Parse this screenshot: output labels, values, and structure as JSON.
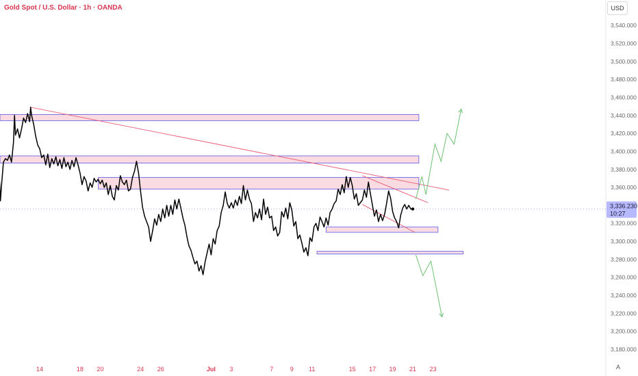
{
  "title": "Gold Spot / U.S. Dollar · 1h · OANDA",
  "currency_label": "USD",
  "auto_label": "A",
  "colors": {
    "price_line": "#000000",
    "zone_fill": "#f8cfd8",
    "zone_stroke": "#5a5ae6",
    "trend_line": "#e85a72",
    "projection_up": "#6cc072",
    "projection_down": "#6cc072",
    "axis_text_x": "#d9364f",
    "axis_text_y": "#666666",
    "price_tag_bg": "#b7b9ff"
  },
  "price_tag": {
    "price": "3,336.230",
    "countdown": "10:27"
  },
  "chart_data": {
    "type": "line",
    "title": "Gold Spot / U.S. Dollar · 1h · OANDA",
    "xlabel": "",
    "ylabel": "",
    "ylim": [
      3163,
      3565
    ],
    "x_ticks": [
      {
        "label": "14",
        "day": 0
      },
      {
        "label": "18",
        "day": 4
      },
      {
        "label": "20",
        "day": 6
      },
      {
        "label": "24",
        "day": 10
      },
      {
        "label": "26",
        "day": 12
      },
      {
        "label": "Jul",
        "day": 17
      },
      {
        "label": "3",
        "day": 19
      },
      {
        "label": "7",
        "day": 23
      },
      {
        "label": "9",
        "day": 25
      },
      {
        "label": "11",
        "day": 27
      },
      {
        "label": "15",
        "day": 31
      },
      {
        "label": "17",
        "day": 33
      },
      {
        "label": "19",
        "day": 35
      },
      {
        "label": "21",
        "day": 37
      },
      {
        "label": "23",
        "day": 39
      }
    ],
    "y_ticks": [
      3180,
      3200,
      3220,
      3240,
      3260,
      3280,
      3300,
      3320,
      3340,
      3360,
      3380,
      3400,
      3420,
      3440,
      3460,
      3480,
      3500,
      3520,
      3540
    ],
    "y_tick_labels": [
      "3,180.000",
      "3,200.000",
      "3,220.000",
      "3,240.000",
      "3,260.000",
      "3,280.000",
      "3,300.000",
      "3,320.000",
      "3,340.000",
      "3,360.000",
      "3,380.000",
      "3,400.000",
      "3,420.000",
      "3,440.000",
      "3,460.000",
      "3,480.000",
      "3,500.000",
      "3,520.000",
      "3,540.000"
    ],
    "series": [
      {
        "points": [
          [
            -4.6,
            3370
          ],
          [
            -4.4,
            3375
          ],
          [
            -4.2,
            3368
          ],
          [
            -4.0,
            3372
          ],
          [
            -3.9,
            3345
          ],
          [
            -3.8,
            3360
          ],
          [
            -3.6,
            3388
          ],
          [
            -3.4,
            3392
          ],
          [
            -3.2,
            3390
          ],
          [
            -3.0,
            3396
          ],
          [
            -2.8,
            3388
          ],
          [
            -2.6,
            3410
          ],
          [
            -2.5,
            3440
          ],
          [
            -2.4,
            3418
          ],
          [
            -2.2,
            3425
          ],
          [
            -2.0,
            3415
          ],
          [
            -1.8,
            3425
          ],
          [
            -1.6,
            3437
          ],
          [
            -1.4,
            3432
          ],
          [
            -1.2,
            3442
          ],
          [
            -1.0,
            3433
          ],
          [
            -0.9,
            3449
          ],
          [
            -0.8,
            3440
          ],
          [
            -0.6,
            3430
          ],
          [
            -0.4,
            3417
          ],
          [
            -0.2,
            3407
          ],
          [
            0.0,
            3403
          ],
          [
            0.2,
            3393
          ],
          [
            0.4,
            3396
          ],
          [
            0.6,
            3385
          ],
          [
            0.8,
            3397
          ],
          [
            1.0,
            3382
          ],
          [
            1.2,
            3392
          ],
          [
            1.4,
            3386
          ],
          [
            1.6,
            3394
          ],
          [
            1.8,
            3384
          ],
          [
            2.0,
            3391
          ],
          [
            2.2,
            3381
          ],
          [
            2.4,
            3393
          ],
          [
            2.6,
            3383
          ],
          [
            2.8,
            3388
          ],
          [
            3.0,
            3380
          ],
          [
            3.2,
            3390
          ],
          [
            3.4,
            3383
          ],
          [
            3.6,
            3393
          ],
          [
            3.8,
            3385
          ],
          [
            4.0,
            3376
          ],
          [
            4.2,
            3363
          ],
          [
            4.4,
            3372
          ],
          [
            4.6,
            3367
          ],
          [
            4.8,
            3356
          ],
          [
            5.0,
            3365
          ],
          [
            5.2,
            3360
          ],
          [
            5.4,
            3370
          ],
          [
            5.6,
            3366
          ],
          [
            5.8,
            3369
          ],
          [
            6.0,
            3364
          ],
          [
            6.2,
            3368
          ],
          [
            6.4,
            3360
          ],
          [
            6.6,
            3365
          ],
          [
            6.8,
            3352
          ],
          [
            7.0,
            3362
          ],
          [
            7.2,
            3350
          ],
          [
            7.4,
            3346
          ],
          [
            7.6,
            3362
          ],
          [
            7.8,
            3357
          ],
          [
            8.0,
            3373
          ],
          [
            8.2,
            3366
          ],
          [
            8.4,
            3363
          ],
          [
            8.6,
            3368
          ],
          [
            8.8,
            3356
          ],
          [
            9.0,
            3358
          ],
          [
            9.2,
            3371
          ],
          [
            9.4,
            3378
          ],
          [
            9.6,
            3389
          ],
          [
            9.8,
            3376
          ],
          [
            10.0,
            3356
          ],
          [
            10.2,
            3338
          ],
          [
            10.4,
            3328
          ],
          [
            10.6,
            3322
          ],
          [
            10.8,
            3316
          ],
          [
            11.0,
            3300
          ],
          [
            11.2,
            3312
          ],
          [
            11.4,
            3325
          ],
          [
            11.6,
            3318
          ],
          [
            11.8,
            3330
          ],
          [
            12.0,
            3322
          ],
          [
            12.2,
            3336
          ],
          [
            12.4,
            3326
          ],
          [
            12.6,
            3340
          ],
          [
            12.8,
            3328
          ],
          [
            13.0,
            3340
          ],
          [
            13.2,
            3330
          ],
          [
            13.4,
            3346
          ],
          [
            13.6,
            3336
          ],
          [
            13.8,
            3347
          ],
          [
            14.0,
            3337
          ],
          [
            14.2,
            3326
          ],
          [
            14.4,
            3318
          ],
          [
            14.6,
            3305
          ],
          [
            14.8,
            3295
          ],
          [
            15.0,
            3290
          ],
          [
            15.2,
            3282
          ],
          [
            15.4,
            3275
          ],
          [
            15.6,
            3278
          ],
          [
            15.8,
            3267
          ],
          [
            16.0,
            3273
          ],
          [
            16.2,
            3263
          ],
          [
            16.4,
            3277
          ],
          [
            16.6,
            3287
          ],
          [
            16.8,
            3297
          ],
          [
            17.0,
            3285
          ],
          [
            17.2,
            3303
          ],
          [
            17.4,
            3297
          ],
          [
            17.6,
            3312
          ],
          [
            17.8,
            3317
          ],
          [
            18.0,
            3332
          ],
          [
            18.2,
            3340
          ],
          [
            18.4,
            3355
          ],
          [
            18.6,
            3342
          ],
          [
            18.8,
            3337
          ],
          [
            19.0,
            3343
          ],
          [
            19.2,
            3337
          ],
          [
            19.4,
            3346
          ],
          [
            19.6,
            3340
          ],
          [
            19.8,
            3350
          ],
          [
            20.0,
            3342
          ],
          [
            20.2,
            3362
          ],
          [
            20.4,
            3346
          ],
          [
            20.6,
            3357
          ],
          [
            20.8,
            3347
          ],
          [
            21.0,
            3342
          ],
          [
            21.2,
            3322
          ],
          [
            21.4,
            3332
          ],
          [
            21.6,
            3326
          ],
          [
            21.8,
            3336
          ],
          [
            22.0,
            3324
          ],
          [
            22.2,
            3347
          ],
          [
            22.4,
            3330
          ],
          [
            22.6,
            3338
          ],
          [
            22.8,
            3326
          ],
          [
            23.0,
            3328
          ],
          [
            23.2,
            3312
          ],
          [
            23.4,
            3316
          ],
          [
            23.6,
            3306
          ],
          [
            23.8,
            3310
          ],
          [
            24.0,
            3333
          ],
          [
            24.2,
            3327
          ],
          [
            24.4,
            3337
          ],
          [
            24.6,
            3325
          ],
          [
            24.8,
            3343
          ],
          [
            25.0,
            3335
          ],
          [
            25.2,
            3317
          ],
          [
            25.4,
            3322
          ],
          [
            25.6,
            3303
          ],
          [
            25.8,
            3307
          ],
          [
            26.0,
            3298
          ],
          [
            26.2,
            3288
          ],
          [
            26.4,
            3293
          ],
          [
            26.6,
            3284
          ],
          [
            26.8,
            3304
          ],
          [
            27.0,
            3300
          ],
          [
            27.2,
            3316
          ],
          [
            27.4,
            3320
          ],
          [
            27.6,
            3312
          ],
          [
            27.8,
            3327
          ],
          [
            28.0,
            3322
          ],
          [
            28.2,
            3316
          ],
          [
            28.4,
            3326
          ],
          [
            28.6,
            3318
          ],
          [
            28.8,
            3332
          ],
          [
            29.0,
            3336
          ],
          [
            29.2,
            3342
          ],
          [
            29.4,
            3345
          ],
          [
            29.6,
            3358
          ],
          [
            29.8,
            3352
          ],
          [
            30.0,
            3363
          ],
          [
            30.2,
            3354
          ],
          [
            30.4,
            3372
          ],
          [
            30.6,
            3360
          ],
          [
            30.8,
            3371
          ],
          [
            31.0,
            3362
          ],
          [
            31.2,
            3347
          ],
          [
            31.4,
            3353
          ],
          [
            31.6,
            3340
          ],
          [
            31.8,
            3343
          ],
          [
            32.0,
            3346
          ],
          [
            32.2,
            3357
          ],
          [
            32.4,
            3349
          ],
          [
            32.6,
            3366
          ],
          [
            32.8,
            3353
          ],
          [
            33.0,
            3340
          ],
          [
            33.2,
            3328
          ],
          [
            33.4,
            3335
          ],
          [
            33.6,
            3322
          ],
          [
            33.8,
            3330
          ],
          [
            34.0,
            3323
          ],
          [
            34.2,
            3330
          ],
          [
            34.4,
            3342
          ],
          [
            34.6,
            3356
          ],
          [
            34.8,
            3348
          ],
          [
            35.0,
            3333
          ],
          [
            35.2,
            3326
          ],
          [
            35.4,
            3322
          ],
          [
            35.6,
            3315
          ],
          [
            35.8,
            3329
          ],
          [
            36.0,
            3337
          ],
          [
            36.2,
            3341
          ],
          [
            36.4,
            3336
          ],
          [
            36.6,
            3340
          ],
          [
            36.8,
            3336
          ],
          [
            37.0,
            3336
          ]
        ]
      }
    ],
    "zones": [
      {
        "x0": -5,
        "x1": 37.6,
        "y_top": 3441,
        "y_bottom": 3434
      },
      {
        "x0": -5,
        "x1": 37.6,
        "y_top": 3395,
        "y_bottom": 3387
      },
      {
        "x0": 5.8,
        "x1": 37.6,
        "y_top": 3371,
        "y_bottom": 3358
      },
      {
        "x0": 28.4,
        "x1": 39.5,
        "y_top": 3316,
        "y_bottom": 3310
      },
      {
        "x0": 27.5,
        "x1": 42,
        "y_top": 3289,
        "y_bottom": 3286
      }
    ],
    "trend_lines": [
      {
        "x0": -0.9,
        "y0": 3449,
        "x1": 40.6,
        "y1": 3357
      },
      {
        "x0": 32.0,
        "y0": 3373,
        "x1": 38.5,
        "y1": 3343
      },
      {
        "x0": 32.0,
        "y0": 3341,
        "x1": 37.2,
        "y1": 3310
      }
    ],
    "projection_up": [
      [
        37.3,
        3347
      ],
      [
        37.9,
        3372
      ],
      [
        38.3,
        3352
      ],
      [
        39.2,
        3408
      ],
      [
        39.8,
        3389
      ],
      [
        40.4,
        3420
      ],
      [
        41.1,
        3408
      ],
      [
        41.8,
        3447
      ]
    ],
    "projection_down": [
      [
        37.3,
        3285
      ],
      [
        38.0,
        3262
      ],
      [
        38.8,
        3278
      ],
      [
        39.9,
        3216
      ]
    ]
  }
}
